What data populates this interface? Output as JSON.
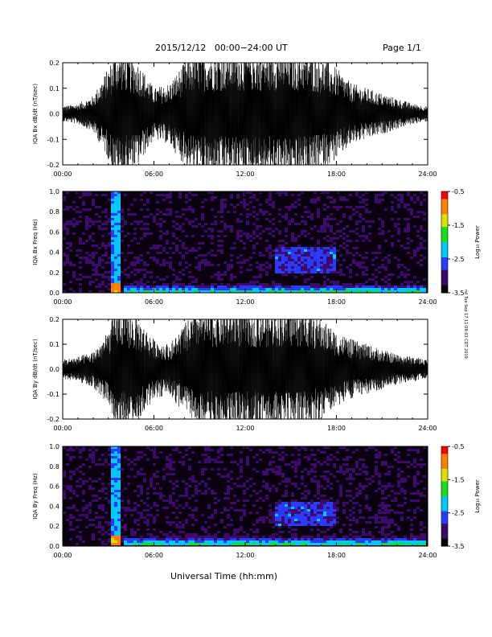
{
  "header": {
    "date_range": "2015/12/12   00:00−24:00 UT",
    "page": "Page 1/1"
  },
  "footer": {
    "x_axis_title": "Universal Time (hh:mm)"
  },
  "stamp": "rel Tue Sep 17 11:09:03 CDT 2019",
  "colors": {
    "trace": "#000000",
    "colorbar": [
      "#000000",
      "#3b0a6b",
      "#2a3bff",
      "#00c8ff",
      "#18e018",
      "#d8e000",
      "#ff8000",
      "#ff0000"
    ]
  },
  "chart_data": [
    {
      "type": "line",
      "ylabel": "IQA Bx dB/dt (nT/sec)",
      "xlim": [
        0,
        24
      ],
      "ylim": [
        -0.2,
        0.2
      ],
      "x_ticks": [
        "00:00",
        "06:00",
        "12:00",
        "18:00",
        "24:00"
      ],
      "y_ticks": [
        "-0.2",
        "-0.1",
        "0.0",
        "0.1",
        "0.2"
      ],
      "envelope": {
        "x": [
          0,
          1,
          2,
          3,
          3.5,
          4,
          5,
          6,
          7,
          8,
          9,
          10,
          11,
          12,
          13,
          14,
          15,
          16,
          17,
          18,
          19,
          20,
          21,
          22,
          23,
          24
        ],
        "amplitude": [
          0.03,
          0.04,
          0.07,
          0.18,
          0.25,
          0.25,
          0.2,
          0.1,
          0.12,
          0.2,
          0.25,
          0.25,
          0.25,
          0.25,
          0.25,
          0.25,
          0.25,
          0.25,
          0.22,
          0.18,
          0.12,
          0.1,
          0.08,
          0.06,
          0.04,
          0.03
        ]
      }
    },
    {
      "type": "heatmap",
      "ylabel": "IQA Bx Freq (Hz)",
      "xlim": [
        0,
        24
      ],
      "ylim": [
        0,
        1.0
      ],
      "x_ticks": [
        "00:00",
        "06:00",
        "12:00",
        "18:00",
        "24:00"
      ],
      "y_ticks": [
        "0.0",
        "0.2",
        "0.4",
        "0.6",
        "0.8",
        "1.0"
      ],
      "colorbar": {
        "label": "Log₁₀ Power",
        "range": [
          -3.5,
          -0.5
        ],
        "ticks": [
          "-0.5",
          "-1.5",
          "-2.5",
          "-3.5"
        ]
      },
      "features": [
        {
          "kind": "vertical-bursts",
          "x": [
            3.4,
            3.6,
            3.8
          ],
          "intensity": -1.0
        },
        {
          "kind": "band",
          "x": [
            4,
            24
          ],
          "freq": [
            0.0,
            0.05
          ],
          "intensity": -1.5
        },
        {
          "kind": "patch",
          "x": [
            14,
            18
          ],
          "freq": [
            0.2,
            0.45
          ],
          "intensity": -2.5
        }
      ]
    },
    {
      "type": "line",
      "ylabel": "IQA By dB/dt (nT/sec)",
      "xlim": [
        0,
        24
      ],
      "ylim": [
        -0.2,
        0.2
      ],
      "x_ticks": [
        "00:00",
        "06:00",
        "12:00",
        "18:00",
        "24:00"
      ],
      "y_ticks": [
        "-0.2",
        "-0.1",
        "0.0",
        "0.1",
        "0.2"
      ],
      "envelope": {
        "x": [
          0,
          1,
          2,
          3,
          3.5,
          4,
          5,
          6,
          7,
          8,
          9,
          10,
          11,
          12,
          13,
          14,
          15,
          16,
          17,
          18,
          19,
          20,
          21,
          22,
          23,
          24
        ],
        "amplitude": [
          0.04,
          0.05,
          0.07,
          0.15,
          0.25,
          0.25,
          0.2,
          0.12,
          0.1,
          0.18,
          0.25,
          0.25,
          0.25,
          0.25,
          0.25,
          0.25,
          0.25,
          0.25,
          0.2,
          0.15,
          0.12,
          0.1,
          0.08,
          0.06,
          0.05,
          0.04
        ]
      }
    },
    {
      "type": "heatmap",
      "ylabel": "IQA By Freq (Hz)",
      "xlim": [
        0,
        24
      ],
      "ylim": [
        0,
        1.0
      ],
      "x_ticks": [
        "00:00",
        "06:00",
        "12:00",
        "18:00",
        "24:00"
      ],
      "y_ticks": [
        "0.0",
        "0.2",
        "0.4",
        "0.6",
        "0.8",
        "1.0"
      ],
      "colorbar": {
        "label": "Log₁₀ Power",
        "range": [
          -3.5,
          -0.5
        ],
        "ticks": [
          "-0.5",
          "-1.5",
          "-2.5",
          "-3.5"
        ]
      },
      "features": [
        {
          "kind": "vertical-bursts",
          "x": [
            3.4,
            3.6,
            3.8
          ],
          "intensity": -1.0
        },
        {
          "kind": "band",
          "x": [
            4,
            24
          ],
          "freq": [
            0.0,
            0.06
          ],
          "intensity": -1.5
        },
        {
          "kind": "patch",
          "x": [
            14,
            18
          ],
          "freq": [
            0.2,
            0.45
          ],
          "intensity": -2.5
        }
      ]
    }
  ]
}
